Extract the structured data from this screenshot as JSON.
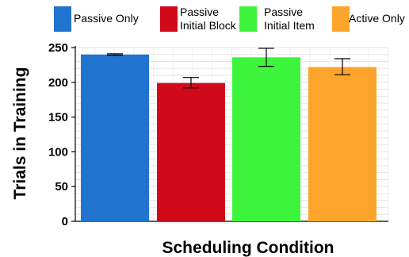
{
  "chart_data": {
    "type": "bar",
    "categories": [
      "Passive Only",
      "Passive Initial Block",
      "Passive Initial Item",
      "Active Only"
    ],
    "legend_labels": [
      [
        "Passive Only"
      ],
      [
        "Passive",
        "Initial Block"
      ],
      [
        "Passive",
        "Initial Item"
      ],
      [
        "Active Only"
      ]
    ],
    "values": [
      240,
      199,
      236,
      222
    ],
    "error": [
      [
        239,
        241
      ],
      [
        192,
        207
      ],
      [
        223,
        249
      ],
      [
        211,
        234
      ]
    ],
    "colors": [
      "#2073cf",
      "#d0091b",
      "#3cf53c",
      "#fda42c"
    ],
    "xlabel": "Scheduling Condition",
    "ylabel": "Trials in Training",
    "ylim": [
      0,
      250
    ],
    "yticks": [
      0,
      50,
      100,
      150,
      200,
      250
    ],
    "grid": true,
    "legend_position": "top"
  }
}
